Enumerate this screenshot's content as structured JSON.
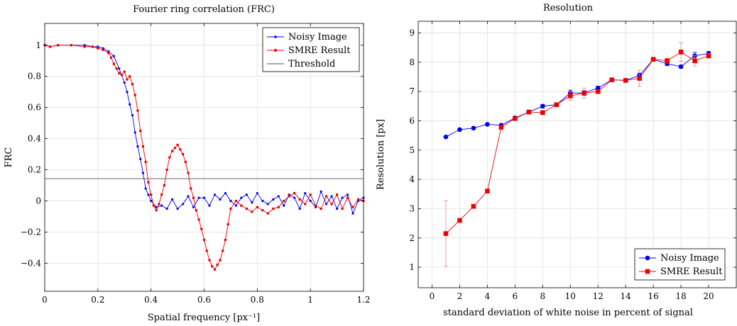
{
  "chart_data": [
    {
      "type": "line",
      "title": "Fourier ring correlation (FRC)",
      "xlabel": "Spatial frequency [px⁻¹]",
      "ylabel": "FRC",
      "xlim": [
        0,
        1.2
      ],
      "ylim": [
        -0.58,
        1.14
      ],
      "xticks": [
        0,
        0.2,
        0.4,
        0.6,
        0.8,
        1,
        1.2
      ],
      "xtick_labels": [
        "0",
        "0.2",
        "0.4",
        "0.6",
        "0.8",
        "1",
        "1.2"
      ],
      "yticks": [
        -0.4,
        -0.2,
        0,
        0.2,
        0.4,
        0.6,
        0.8,
        1
      ],
      "ytick_labels": [
        "−0.4",
        "−0.2",
        "0",
        "0.2",
        "0.4",
        "0.6",
        "0.8",
        "1"
      ],
      "grid": true,
      "legend": "top-right",
      "series": [
        {
          "name": "Noisy Image",
          "color": "#0000ee",
          "marker": "circle",
          "x": [
            0,
            0.02,
            0.05,
            0.1,
            0.15,
            0.18,
            0.2,
            0.22,
            0.24,
            0.26,
            0.28,
            0.3,
            0.31,
            0.32,
            0.33,
            0.34,
            0.35,
            0.36,
            0.37,
            0.38,
            0.39,
            0.4,
            0.42,
            0.44,
            0.46,
            0.48,
            0.5,
            0.52,
            0.54,
            0.56,
            0.58,
            0.6,
            0.62,
            0.64,
            0.66,
            0.68,
            0.7,
            0.72,
            0.74,
            0.76,
            0.78,
            0.8,
            0.82,
            0.84,
            0.86,
            0.88,
            0.9,
            0.92,
            0.94,
            0.96,
            0.98,
            1.0,
            1.02,
            1.04,
            1.06,
            1.08,
            1.1,
            1.12,
            1.14,
            1.16,
            1.18,
            1.2
          ],
          "y": [
            1.0,
            0.99,
            1.0,
            1.0,
            1.0,
            0.99,
            0.99,
            0.98,
            0.96,
            0.93,
            0.85,
            0.76,
            0.7,
            0.62,
            0.55,
            0.44,
            0.35,
            0.27,
            0.18,
            0.08,
            0.04,
            0.0,
            -0.04,
            -0.03,
            -0.05,
            0.01,
            -0.05,
            -0.02,
            0.03,
            -0.04,
            0.02,
            0.02,
            -0.03,
            0.04,
            0.01,
            0.05,
            0.0,
            -0.03,
            0.02,
            0.04,
            -0.01,
            0.05,
            0.0,
            -0.02,
            0.01,
            0.03,
            -0.03,
            0.04,
            0.02,
            -0.05,
            0.05,
            0.0,
            -0.04,
            0.06,
            -0.02,
            0.03,
            -0.05,
            0.02,
            0.04,
            -0.08,
            0.0,
            0.02
          ]
        },
        {
          "name": "SMRE Result",
          "color": "#ee0000",
          "marker": "square",
          "x": [
            0,
            0.02,
            0.05,
            0.1,
            0.15,
            0.18,
            0.2,
            0.22,
            0.24,
            0.25,
            0.26,
            0.27,
            0.28,
            0.29,
            0.3,
            0.31,
            0.32,
            0.33,
            0.34,
            0.35,
            0.36,
            0.37,
            0.38,
            0.39,
            0.4,
            0.41,
            0.42,
            0.43,
            0.44,
            0.45,
            0.46,
            0.47,
            0.48,
            0.49,
            0.5,
            0.51,
            0.52,
            0.53,
            0.54,
            0.55,
            0.56,
            0.57,
            0.58,
            0.59,
            0.6,
            0.61,
            0.62,
            0.63,
            0.64,
            0.65,
            0.66,
            0.67,
            0.68,
            0.69,
            0.7,
            0.72,
            0.74,
            0.76,
            0.78,
            0.8,
            0.82,
            0.84,
            0.86,
            0.88,
            0.9,
            0.92,
            0.94,
            0.96,
            0.98,
            1.0,
            1.02,
            1.04,
            1.06,
            1.08,
            1.1,
            1.12,
            1.14,
            1.16,
            1.18,
            1.2
          ],
          "y": [
            1.0,
            0.99,
            1.0,
            1.0,
            0.99,
            0.99,
            0.98,
            0.97,
            0.95,
            0.92,
            0.88,
            0.85,
            0.82,
            0.81,
            0.83,
            0.78,
            0.8,
            0.75,
            0.68,
            0.58,
            0.45,
            0.35,
            0.25,
            0.12,
            0.04,
            -0.03,
            -0.06,
            -0.02,
            0.04,
            0.1,
            0.2,
            0.28,
            0.32,
            0.34,
            0.36,
            0.33,
            0.3,
            0.25,
            0.18,
            0.08,
            0.02,
            -0.06,
            -0.12,
            -0.18,
            -0.25,
            -0.32,
            -0.38,
            -0.42,
            -0.44,
            -0.41,
            -0.38,
            -0.32,
            -0.25,
            -0.15,
            -0.05,
            0.0,
            -0.03,
            -0.05,
            -0.07,
            -0.04,
            -0.06,
            -0.08,
            -0.05,
            -0.04,
            0.0,
            0.03,
            0.05,
            0.01,
            -0.02,
            0.04,
            -0.03,
            -0.05,
            0.03,
            -0.02,
            0.04,
            -0.05,
            0.02,
            -0.04,
            0.01,
            0.0
          ]
        },
        {
          "name": "Threshold",
          "color": "#555555",
          "marker": "none",
          "x": [
            0,
            1.2
          ],
          "y": [
            0.143,
            0.143
          ]
        }
      ]
    },
    {
      "type": "line",
      "title": "Resolution",
      "xlabel": "standard deviation of white noise in percent of signal",
      "ylabel": "Resolution [px]",
      "xlim": [
        -1,
        22
      ],
      "ylim": [
        0.3,
        9.4
      ],
      "xticks": [
        0,
        2,
        4,
        6,
        8,
        10,
        12,
        14,
        16,
        18,
        20
      ],
      "xtick_labels": [
        "0",
        "2",
        "4",
        "6",
        "8",
        "10",
        "12",
        "14",
        "16",
        "18",
        "20"
      ],
      "yticks": [
        1,
        2,
        3,
        4,
        5,
        6,
        7,
        8,
        9
      ],
      "ytick_labels": [
        "1",
        "2",
        "3",
        "4",
        "5",
        "6",
        "7",
        "8",
        "9"
      ],
      "grid": true,
      "legend": "bottom-right",
      "series": [
        {
          "name": "Noisy Image",
          "color": "#0000ee",
          "marker": "circle",
          "x": [
            1,
            2,
            3,
            4,
            5,
            6,
            7,
            8,
            9,
            10,
            11,
            12,
            13,
            14,
            15,
            16,
            17,
            18,
            19,
            20
          ],
          "y": [
            5.45,
            5.7,
            5.75,
            5.88,
            5.85,
            6.1,
            6.3,
            6.5,
            6.55,
            6.95,
            6.95,
            7.12,
            7.4,
            7.38,
            7.55,
            8.1,
            7.95,
            7.85,
            8.22,
            8.3
          ],
          "err": [
            0.03,
            0.03,
            0.03,
            0.03,
            0.03,
            0.03,
            0.03,
            0.06,
            0.05,
            0.1,
            0.08,
            0.06,
            0.05,
            0.05,
            0.08,
            0.05,
            0.06,
            0.05,
            0.12,
            0.07
          ]
        },
        {
          "name": "SMRE Result",
          "color": "#ee0000",
          "marker": "square",
          "x": [
            1,
            2,
            3,
            4,
            5,
            6,
            7,
            8,
            9,
            10,
            11,
            12,
            13,
            14,
            15,
            16,
            17,
            18,
            19,
            20
          ],
          "y": [
            2.15,
            2.6,
            3.08,
            3.6,
            5.78,
            6.08,
            6.3,
            6.28,
            6.55,
            6.85,
            6.95,
            7.0,
            7.4,
            7.38,
            7.45,
            8.1,
            8.05,
            8.35,
            8.05,
            8.22
          ],
          "err": [
            1.12,
            0.03,
            0.03,
            0.03,
            0.05,
            0.03,
            0.03,
            0.05,
            0.05,
            0.15,
            0.17,
            0.06,
            0.05,
            0.05,
            0.28,
            0.05,
            0.08,
            0.32,
            0.18,
            0.08
          ]
        }
      ]
    }
  ]
}
